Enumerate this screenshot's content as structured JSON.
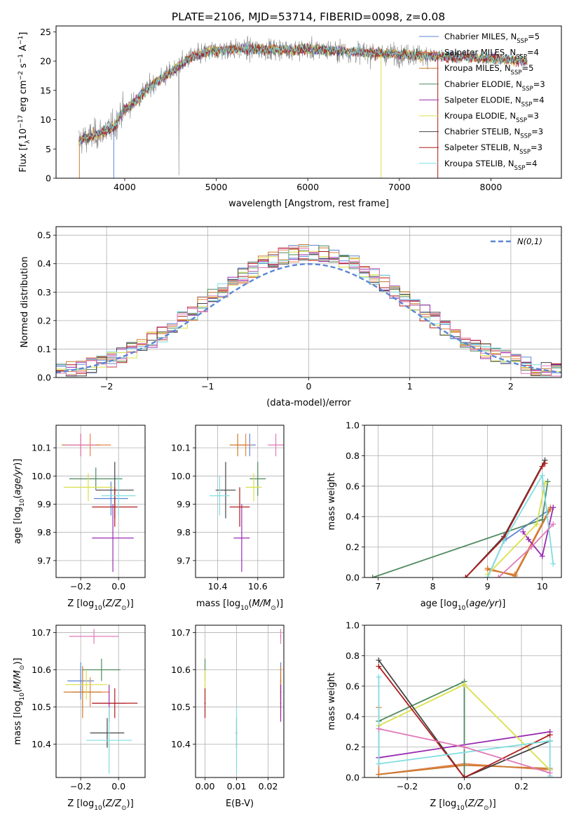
{
  "figure_title": "PLATE=2106, MJD=53714, FIBERID=0098, z=0.08",
  "colors": {
    "Chabrier MILES": "#5b86d6",
    "Salpeter MILES": "#e8834a",
    "Kroupa MILES": "#cc7a2c",
    "Chabrier ELODIE": "#4f8a5e",
    "Salpeter ELODIE": "#9a2cb1",
    "Kroupa ELODIE": "#d8e04a",
    "Chabrier STELIB": "#444444",
    "Salpeter STELIB": "#b01c1c",
    "Kroupa STELIB": "#7fdde0",
    "extra_pink": "#e07ab7",
    "gaussian": "#5b86d6"
  },
  "chart_data": [
    {
      "type": "line",
      "panel": "spectrum",
      "xlabel": "wavelength [Angstrom, rest frame]",
      "ylabel": "Flux [f_λ10^-17 erg cm^-2 s^-1 A^-1]",
      "xlim": [
        3250,
        8770
      ],
      "ylim": [
        0,
        26
      ],
      "xticks": [
        4000,
        5000,
        6000,
        7000,
        8000
      ],
      "yticks": [
        0,
        5,
        10,
        15,
        20,
        25
      ],
      "legend_position": "right",
      "legend": [
        {
          "base": "Chabrier MILES, N",
          "sub": "SSP",
          "tail": "=5"
        },
        {
          "base": "Salpeter MILES, N",
          "sub": "SSP",
          "tail": "=4"
        },
        {
          "base": "Kroupa MILES, N",
          "sub": "SSP",
          "tail": "=5"
        },
        {
          "base": "Chabrier ELODIE, N",
          "sub": "SSP",
          "tail": "=3"
        },
        {
          "base": "Salpeter ELODIE, N",
          "sub": "SSP",
          "tail": "=4"
        },
        {
          "base": "Kroupa ELODIE, N",
          "sub": "SSP",
          "tail": "=3"
        },
        {
          "base": "Chabrier STELIB, N",
          "sub": "SSP",
          "tail": "=3"
        },
        {
          "base": "Salpeter STELIB, N",
          "sub": "SSP",
          "tail": "=3"
        },
        {
          "base": "Kroupa STELIB, N",
          "sub": "SSP",
          "tail": "=4"
        }
      ],
      "continuum": [
        [
          3500,
          6.5
        ],
        [
          3700,
          7.5
        ],
        [
          3900,
          9
        ],
        [
          3950,
          11
        ],
        [
          4100,
          13
        ],
        [
          4300,
          16
        ],
        [
          4500,
          18
        ],
        [
          4700,
          20.5
        ],
        [
          4900,
          21.5
        ],
        [
          5100,
          22
        ],
        [
          5400,
          22
        ],
        [
          5700,
          22
        ],
        [
          6000,
          22
        ],
        [
          6300,
          21.8
        ],
        [
          6600,
          21.5
        ],
        [
          6900,
          21.2
        ],
        [
          7200,
          21
        ],
        [
          7500,
          20.8
        ],
        [
          7800,
          20.6
        ],
        [
          8100,
          20.4
        ],
        [
          8400,
          20
        ]
      ],
      "noise_amplitude": 1.8
    },
    {
      "type": "step",
      "panel": "residual-distribution",
      "xlabel": "(data-model)/error",
      "ylabel": "Normed distribution",
      "xlim": [
        -2.5,
        2.5
      ],
      "ylim": [
        0,
        0.53
      ],
      "xticks": [
        -2,
        -1,
        0,
        1,
        2
      ],
      "yticks": [
        0.0,
        0.1,
        0.2,
        0.3,
        0.4,
        0.5
      ],
      "gaussian_label": "N(0,1)",
      "legend_position": "top-right",
      "bin_width": 0.1,
      "bin_start": -2.5
    },
    {
      "type": "scatter",
      "panel": "age-vs-Z",
      "xlabel": "Z [log10(Z/Z⊙)]",
      "ylabel": "age [log10(age/yr)]",
      "xlim": [
        -0.33,
        0.14
      ],
      "ylim": [
        9.64,
        10.18
      ],
      "xticks": [
        -0.2,
        0.0
      ],
      "yticks": [
        9.7,
        9.8,
        9.9,
        10.0,
        10.1
      ],
      "points": [
        {
          "series": "Chabrier MILES",
          "x": -0.04,
          "y": 9.92,
          "xerr": 0.09,
          "yerr": 0.06
        },
        {
          "series": "Salpeter MILES",
          "x": -0.15,
          "y": 10.11,
          "xerr": 0.11,
          "yerr": 0.04
        },
        {
          "series": "Kroupa MILES",
          "x": -0.2,
          "y": 10.11,
          "xerr": 0.1,
          "yerr": 0.04
        },
        {
          "series": "Chabrier ELODIE",
          "x": -0.12,
          "y": 9.99,
          "xerr": 0.14,
          "yerr": 0.04
        },
        {
          "series": "Salpeter ELODIE",
          "x": -0.03,
          "y": 9.78,
          "xerr": 0.11,
          "yerr": 0.12
        },
        {
          "series": "Kroupa ELODIE",
          "x": -0.16,
          "y": 9.96,
          "xerr": 0.13,
          "yerr": 0.05
        },
        {
          "series": "Chabrier STELIB",
          "x": -0.02,
          "y": 9.95,
          "xerr": 0.1,
          "yerr": 0.1
        },
        {
          "series": "Salpeter STELIB",
          "x": -0.02,
          "y": 9.89,
          "xerr": 0.12,
          "yerr": 0.07
        },
        {
          "series": "Kroupa STELIB",
          "x": 0.0,
          "y": 9.93,
          "xerr": 0.09,
          "yerr": 0.07
        },
        {
          "series": "extra_pink",
          "x": -0.2,
          "y": 10.11,
          "xerr": 0.08,
          "yerr": 0.04
        }
      ]
    },
    {
      "type": "scatter",
      "panel": "age-vs-mass",
      "xlabel": "mass [log10(M/M⊙)]",
      "ylabel": "",
      "xlim": [
        10.29,
        10.73
      ],
      "ylim": [
        9.64,
        10.18
      ],
      "xticks": [
        10.4,
        10.6
      ],
      "yticks": [
        9.7,
        9.8,
        9.9,
        10.0,
        10.1
      ],
      "points": [
        {
          "series": "Chabrier MILES",
          "x": 10.56,
          "y": 10.11,
          "xerr": 0.03,
          "yerr": 0.04
        },
        {
          "series": "Salpeter MILES",
          "x": 10.54,
          "y": 10.11,
          "xerr": 0.03,
          "yerr": 0.04
        },
        {
          "series": "Kroupa MILES",
          "x": 10.5,
          "y": 10.11,
          "xerr": 0.04,
          "yerr": 0.04
        },
        {
          "series": "Chabrier ELODIE",
          "x": 10.6,
          "y": 9.99,
          "xerr": 0.04,
          "yerr": 0.06
        },
        {
          "series": "Salpeter ELODIE",
          "x": 10.52,
          "y": 9.78,
          "xerr": 0.04,
          "yerr": 0.12
        },
        {
          "series": "Kroupa ELODIE",
          "x": 10.58,
          "y": 9.96,
          "xerr": 0.04,
          "yerr": 0.05
        },
        {
          "series": "Chabrier STELIB",
          "x": 10.44,
          "y": 9.95,
          "xerr": 0.05,
          "yerr": 0.1
        },
        {
          "series": "Salpeter STELIB",
          "x": 10.51,
          "y": 9.89,
          "xerr": 0.05,
          "yerr": 0.07
        },
        {
          "series": "Kroupa STELIB",
          "x": 10.41,
          "y": 9.93,
          "xerr": 0.05,
          "yerr": 0.07
        },
        {
          "series": "extra_pink",
          "x": 10.69,
          "y": 10.11,
          "xerr": 0.04,
          "yerr": 0.04
        }
      ]
    },
    {
      "type": "line",
      "panel": "mass-weight-vs-age",
      "xlabel": "age [log10(age/yr)]",
      "ylabel": "mass weight",
      "xlim": [
        6.75,
        10.35
      ],
      "ylim": [
        0,
        1.0
      ],
      "xticks": [
        7,
        8,
        9,
        10
      ],
      "yticks": [
        0.0,
        0.2,
        0.4,
        0.6,
        0.8,
        1.0
      ],
      "series": [
        {
          "name": "Chabrier MILES",
          "points": [
            [
              9.0,
              0.0
            ],
            [
              9.3,
              0.24
            ],
            [
              10.15,
              0.45
            ]
          ]
        },
        {
          "name": "Salpeter MILES",
          "points": [
            [
              9.0,
              0.05
            ],
            [
              9.5,
              0.02
            ],
            [
              10.15,
              0.46
            ]
          ]
        },
        {
          "name": "Kroupa MILES",
          "points": [
            [
              9.0,
              0.06
            ],
            [
              9.5,
              0.01
            ],
            [
              10.15,
              0.45
            ]
          ]
        },
        {
          "name": "Chabrier ELODIE",
          "points": [
            [
              6.9,
              0.0
            ],
            [
              10.0,
              0.38
            ],
            [
              10.1,
              0.63
            ]
          ]
        },
        {
          "name": "Salpeter ELODIE",
          "points": [
            [
              9.65,
              0.3
            ],
            [
              9.75,
              0.25
            ],
            [
              10.0,
              0.14
            ],
            [
              10.2,
              0.46
            ]
          ]
        },
        {
          "name": "Kroupa ELODIE",
          "points": [
            [
              9.0,
              0.02
            ],
            [
              9.9,
              0.35
            ],
            [
              10.05,
              0.62
            ]
          ]
        },
        {
          "name": "Chabrier STELIB",
          "points": [
            [
              8.6,
              0.0
            ],
            [
              9.3,
              0.27
            ],
            [
              10.05,
              0.77
            ]
          ]
        },
        {
          "name": "Salpeter STELIB",
          "points": [
            [
              8.6,
              0.0
            ],
            [
              9.3,
              0.26
            ],
            [
              10.0,
              0.73
            ],
            [
              10.05,
              0.75
            ]
          ]
        },
        {
          "name": "Kroupa STELIB",
          "points": [
            [
              9.0,
              0.0
            ],
            [
              9.3,
              0.24
            ],
            [
              10.0,
              0.67
            ],
            [
              10.2,
              0.09
            ]
          ]
        },
        {
          "name": "extra_pink",
          "points": [
            [
              9.2,
              0.0
            ],
            [
              9.8,
              0.2
            ],
            [
              10.2,
              0.35
            ]
          ]
        }
      ]
    },
    {
      "type": "scatter",
      "panel": "mass-vs-Z",
      "xlabel": "Z [log10(Z/Z⊙)]",
      "ylabel": "mass [log10(M/M⊙)]",
      "xlim": [
        -0.33,
        0.14
      ],
      "ylim": [
        10.31,
        10.72
      ],
      "xticks": [
        -0.2,
        0.0
      ],
      "yticks": [
        10.4,
        10.5,
        10.6,
        10.7
      ],
      "points": [
        {
          "series": "Chabrier MILES",
          "x": -0.2,
          "y": 10.57,
          "xerr": 0.07,
          "yerr": 0.05
        },
        {
          "series": "Salpeter MILES",
          "x": -0.15,
          "y": 10.54,
          "xerr": 0.1,
          "yerr": 0.04
        },
        {
          "series": "Kroupa MILES",
          "x": -0.19,
          "y": 10.54,
          "xerr": 0.1,
          "yerr": 0.07
        },
        {
          "series": "Chabrier ELODIE",
          "x": -0.09,
          "y": 10.6,
          "xerr": 0.1,
          "yerr": 0.03
        },
        {
          "series": "Salpeter ELODIE",
          "x": -0.05,
          "y": 10.51,
          "xerr": 0.09,
          "yerr": 0.05
        },
        {
          "series": "Kroupa ELODIE",
          "x": -0.17,
          "y": 10.56,
          "xerr": 0.11,
          "yerr": 0.04
        },
        {
          "series": "Chabrier STELIB",
          "x": -0.06,
          "y": 10.43,
          "xerr": 0.09,
          "yerr": 0.04
        },
        {
          "series": "Salpeter STELIB",
          "x": -0.02,
          "y": 10.51,
          "xerr": 0.12,
          "yerr": 0.04
        },
        {
          "series": "Kroupa STELIB",
          "x": -0.05,
          "y": 10.41,
          "xerr": 0.12,
          "yerr": 0.09
        },
        {
          "series": "extra_pink",
          "x": -0.13,
          "y": 10.69,
          "xerr": 0.13,
          "yerr": 0.02
        }
      ]
    },
    {
      "type": "scatter",
      "panel": "mass-vs-ebv",
      "xlabel": "E(B-V)",
      "ylabel": "",
      "xlim": [
        -0.003,
        0.025
      ],
      "ylim": [
        10.31,
        10.72
      ],
      "xticks": [
        0.0,
        0.01,
        0.02
      ],
      "yticks": [
        10.4,
        10.5,
        10.6,
        10.7
      ],
      "points": [
        {
          "series": "Chabrier MILES",
          "x": 0.024,
          "y": 10.57,
          "xerr": 0.0002,
          "yerr": 0.05
        },
        {
          "series": "Salpeter MILES",
          "x": 0.024,
          "y": 10.54,
          "xerr": 0.0002,
          "yerr": 0.04
        },
        {
          "series": "Kroupa MILES",
          "x": 0.024,
          "y": 10.54,
          "xerr": 0.0002,
          "yerr": 0.07
        },
        {
          "series": "Chabrier ELODIE",
          "x": 0.0,
          "y": 10.6,
          "xerr": 0.0002,
          "yerr": 0.03
        },
        {
          "series": "Salpeter ELODIE",
          "x": 0.024,
          "y": 10.51,
          "xerr": 0.0002,
          "yerr": 0.05
        },
        {
          "series": "Kroupa ELODIE",
          "x": 0.0,
          "y": 10.56,
          "xerr": 0.0002,
          "yerr": 0.04
        },
        {
          "series": "Chabrier STELIB",
          "x": 0.01,
          "y": 10.43,
          "xerr": 0.0002,
          "yerr": 0.04
        },
        {
          "series": "Salpeter STELIB",
          "x": 0.0,
          "y": 10.51,
          "xerr": 0.0002,
          "yerr": 0.04
        },
        {
          "series": "Kroupa STELIB",
          "x": 0.01,
          "y": 10.41,
          "xerr": 0.0002,
          "yerr": 0.09
        },
        {
          "series": "extra_pink",
          "x": 0.024,
          "y": 10.69,
          "xerr": 0.0002,
          "yerr": 0.02
        }
      ]
    },
    {
      "type": "line",
      "panel": "mass-weight-vs-Z",
      "xlabel": "Z [log10(Z/Z⊙)]",
      "ylabel": "mass weight",
      "xlim": [
        -0.35,
        0.34
      ],
      "ylim": [
        0,
        1.0
      ],
      "xticks": [
        -0.2,
        0.0,
        0.2
      ],
      "yticks": [
        0.0,
        0.2,
        0.4,
        0.6,
        0.8,
        1.0
      ],
      "series": [
        {
          "name": "Chabrier MILES",
          "points": [
            [
              -0.3,
              0.02
            ],
            [
              0.0,
              0.09
            ],
            [
              0.3,
              0.05
            ]
          ]
        },
        {
          "name": "Salpeter MILES",
          "points": [
            [
              -0.3,
              0.46
            ],
            [
              -0.3,
              0.02
            ],
            [
              0.0,
              0.09
            ],
            [
              0.3,
              0.05
            ]
          ]
        },
        {
          "name": "Kroupa MILES",
          "points": [
            [
              -0.3,
              0.02
            ],
            [
              0.0,
              0.08
            ],
            [
              0.3,
              0.06
            ]
          ]
        },
        {
          "name": "Chabrier ELODIE",
          "points": [
            [
              -0.3,
              0.37
            ],
            [
              0.0,
              0.63
            ],
            [
              0.0,
              0.0
            ]
          ]
        },
        {
          "name": "Salpeter ELODIE",
          "points": [
            [
              -0.3,
              0.13
            ],
            [
              0.3,
              0.3
            ]
          ]
        },
        {
          "name": "Kroupa ELODIE",
          "points": [
            [
              -0.3,
              0.34
            ],
            [
              0.0,
              0.61
            ],
            [
              0.3,
              0.05
            ]
          ]
        },
        {
          "name": "Chabrier STELIB",
          "points": [
            [
              -0.3,
              0.77
            ],
            [
              0.0,
              0.0
            ],
            [
              0.3,
              0.24
            ]
          ]
        },
        {
          "name": "Salpeter STELIB",
          "points": [
            [
              -0.3,
              0.73
            ],
            [
              0.0,
              0.0
            ],
            [
              0.3,
              0.28
            ]
          ]
        },
        {
          "name": "Kroupa STELIB",
          "points": [
            [
              -0.3,
              0.66
            ],
            [
              -0.3,
              0.09
            ],
            [
              0.3,
              0.24
            ],
            [
              0.3,
              0.01
            ]
          ]
        },
        {
          "name": "extra_pink",
          "points": [
            [
              -0.3,
              0.32
            ],
            [
              0.0,
              0.2
            ],
            [
              0.3,
              0.03
            ]
          ]
        }
      ]
    }
  ]
}
